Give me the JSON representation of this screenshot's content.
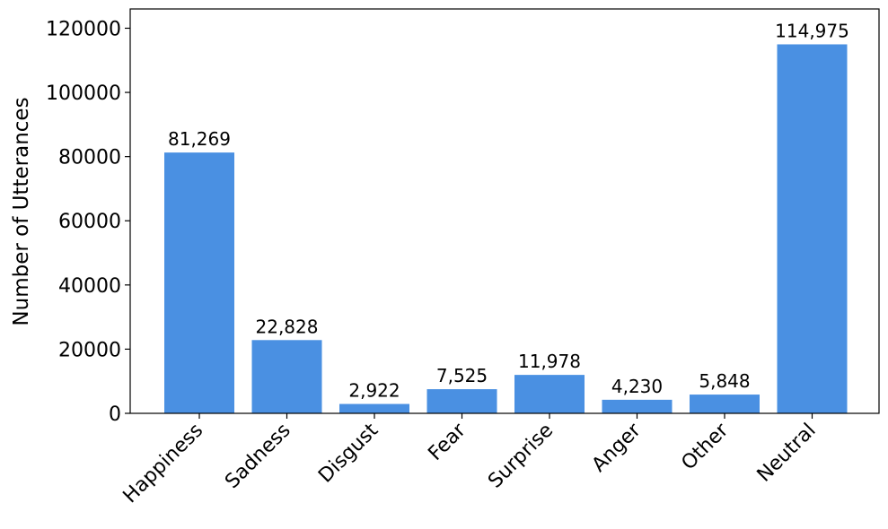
{
  "chart_data": {
    "type": "bar",
    "ylabel": "Number of Utterances",
    "xlabel": "",
    "categories": [
      "Happiness",
      "Sadness",
      "Disgust",
      "Fear",
      "Surprise",
      "Anger",
      "Other",
      "Neutral"
    ],
    "values": [
      81269,
      22828,
      2922,
      7525,
      11978,
      4230,
      5848,
      114975
    ],
    "value_labels": [
      "81,269",
      "22,828",
      "2,922",
      "7,525",
      "11,978",
      "4,230",
      "5,848",
      "114,975"
    ],
    "y_ticks": [
      0,
      20000,
      40000,
      60000,
      80000,
      100000,
      120000
    ],
    "y_tick_labels": [
      "0",
      "20000",
      "40000",
      "60000",
      "80000",
      "100000",
      "120000"
    ],
    "ylim": [
      0,
      126000
    ],
    "bar_color": "#4a90e2",
    "grid": false,
    "legend": "none"
  }
}
